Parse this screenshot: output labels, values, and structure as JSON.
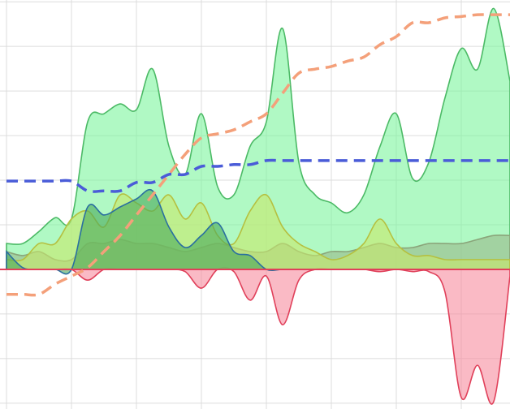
{
  "chart_data": {
    "type": "area",
    "x": [
      0,
      0.25,
      0.5,
      0.75,
      1,
      1.25,
      1.5,
      1.75,
      2,
      2.25,
      2.5,
      2.75,
      3,
      3.25,
      3.5,
      3.75,
      4,
      4.25,
      4.5,
      4.75,
      5,
      5.25,
      5.5,
      5.75,
      6,
      6.25,
      6.5,
      6.75,
      7,
      7.25,
      7.5,
      7.75
    ],
    "xlim": [
      -0.1,
      7.75
    ],
    "xticks": [
      0,
      1,
      2,
      3,
      4,
      5,
      6,
      7
    ],
    "ylim": [
      -3.13,
      6.04
    ],
    "yticks": [
      -3,
      -2,
      -1,
      0,
      1,
      2,
      3,
      4,
      5,
      6
    ],
    "grid": true,
    "series": [
      {
        "style": "area",
        "color": "#7cf59c",
        "line_color": "#4cba66",
        "values": [
          0.58,
          0.58,
          0.85,
          1.16,
          1.13,
          3.31,
          3.49,
          3.71,
          3.58,
          4.49,
          2.76,
          2.13,
          3.49,
          1.85,
          1.67,
          2.76,
          3.31,
          5.4,
          2.4,
          1.67,
          1.49,
          1.27,
          1.67,
          2.76,
          3.49,
          2.04,
          2.4,
          3.85,
          4.95,
          4.49,
          5.85,
          4.22
        ]
      },
      {
        "style": "area",
        "color": "#f78c9e",
        "line_color": "#e0405a",
        "values": [
          0,
          0,
          0,
          0,
          0,
          -0.24,
          0,
          0,
          0,
          0,
          0,
          -0.05,
          -0.42,
          0,
          -0.05,
          -0.69,
          -0.15,
          -1.24,
          -0.24,
          0,
          0,
          0,
          0,
          -0.05,
          0,
          -0.05,
          -0.05,
          -0.51,
          -2.87,
          -2.15,
          -2.96,
          -0.15
        ]
      },
      {
        "style": "area",
        "color": "#9ab88a",
        "line_color": "#8aa57a",
        "values": [
          0.4,
          0.31,
          0.4,
          0.22,
          0.22,
          0.58,
          0.58,
          0.67,
          0.58,
          0.58,
          0.49,
          0.4,
          0.49,
          0.58,
          0.49,
          0.4,
          0.4,
          0.58,
          0.4,
          0.31,
          0.4,
          0.4,
          0.49,
          0.58,
          0.49,
          0.49,
          0.58,
          0.58,
          0.58,
          0.67,
          0.76,
          0.76
        ]
      },
      {
        "style": "area",
        "color": "#c8e86a",
        "line_color": "#b5c040",
        "values": [
          0.22,
          0.22,
          0.58,
          0.58,
          1.13,
          1.31,
          0.95,
          1.67,
          1.49,
          1.31,
          1.67,
          1.13,
          1.49,
          0.76,
          0.58,
          1.31,
          1.67,
          0.95,
          0.58,
          0.4,
          0.22,
          0.31,
          0.58,
          1.13,
          0.58,
          0.31,
          0.31,
          0.22,
          0.22,
          0.22,
          0.22,
          0.22
        ]
      },
      {
        "style": "area",
        "color": "#4aa85a",
        "line_color": "#2a6fa0",
        "values": [
          0.4,
          0.04,
          0,
          0,
          0,
          1.4,
          1.22,
          1.4,
          1.58,
          1.76,
          0.95,
          0.49,
          0.76,
          1.04,
          0.4,
          0.31,
          0,
          0,
          0,
          0,
          0,
          0,
          0,
          0,
          0,
          0,
          0,
          0,
          0,
          0,
          0,
          0
        ]
      },
      {
        "style": "dashed",
        "color": "#f4a07a",
        "values": [
          -0.56,
          -0.56,
          -0.56,
          -0.33,
          -0.15,
          0.04,
          0.4,
          0.76,
          1.22,
          1.67,
          2.13,
          2.58,
          2.95,
          3.04,
          3.13,
          3.31,
          3.49,
          3.95,
          4.4,
          4.49,
          4.55,
          4.67,
          4.76,
          5.04,
          5.22,
          5.53,
          5.53,
          5.64,
          5.67,
          5.71,
          5.71,
          5.71
        ]
      },
      {
        "style": "dashed",
        "color": "#4a5cd8",
        "values": [
          1.98,
          1.98,
          1.98,
          1.98,
          1.98,
          1.76,
          1.76,
          1.76,
          1.95,
          1.95,
          2.13,
          2.13,
          2.31,
          2.31,
          2.35,
          2.35,
          2.44,
          2.44,
          2.44,
          2.44,
          2.44,
          2.44,
          2.44,
          2.44,
          2.44,
          2.44,
          2.44,
          2.44,
          2.44,
          2.44,
          2.44,
          2.44
        ]
      }
    ]
  }
}
